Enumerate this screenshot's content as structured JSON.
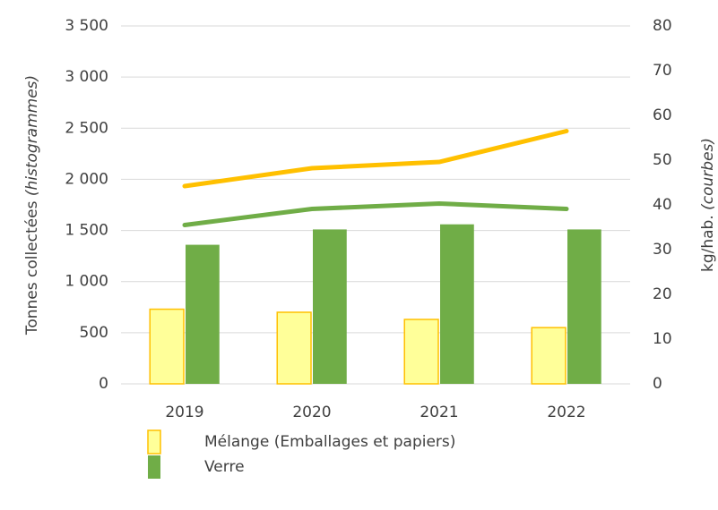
{
  "chart_data": {
    "type": "bar-line",
    "categories": [
      "2019",
      "2020",
      "2021",
      "2022"
    ],
    "series": [
      {
        "name": "Mélange (Emballages et papiers)",
        "color": "#ffff99",
        "edge": "#ffc000",
        "values": [
          730,
          700,
          630,
          550
        ]
      },
      {
        "name": "Verre",
        "color": "#70ad47",
        "values": [
          1360,
          1510,
          1560,
          1510
        ]
      },
      {
        "type": "line",
        "axis": "y2",
        "color": "#ffc000",
        "values": [
          44.2,
          48.2,
          49.6,
          56.5
        ]
      },
      {
        "type": "line",
        "axis": "y2",
        "color": "#70ad47",
        "values": [
          35.5,
          39.1,
          40.3,
          39.1
        ]
      }
    ],
    "y_label": {
      "text": "Tonnes collectées",
      "note": "(histogrammes)"
    },
    "y2_label": {
      "text": "kg/hab.",
      "note": "(courbes)"
    },
    "ylim": [
      0,
      3500
    ],
    "yticks": [
      0,
      {
        "value": 500,
        "label": "500"
      },
      {
        "value": 1000,
        "label": "1 000"
      },
      {
        "value": 1500,
        "label": "1 500"
      },
      {
        "value": 2000,
        "label": "2 000"
      },
      {
        "value": 2500,
        "label": "2 500"
      },
      {
        "value": 3000,
        "label": "3 000"
      },
      {
        "value": 3500,
        "label": "3 500"
      }
    ],
    "y2lim": [
      0,
      80
    ],
    "y2ticks": [
      0,
      10,
      20,
      30,
      40,
      50,
      60,
      70,
      80
    ],
    "grid": true
  }
}
